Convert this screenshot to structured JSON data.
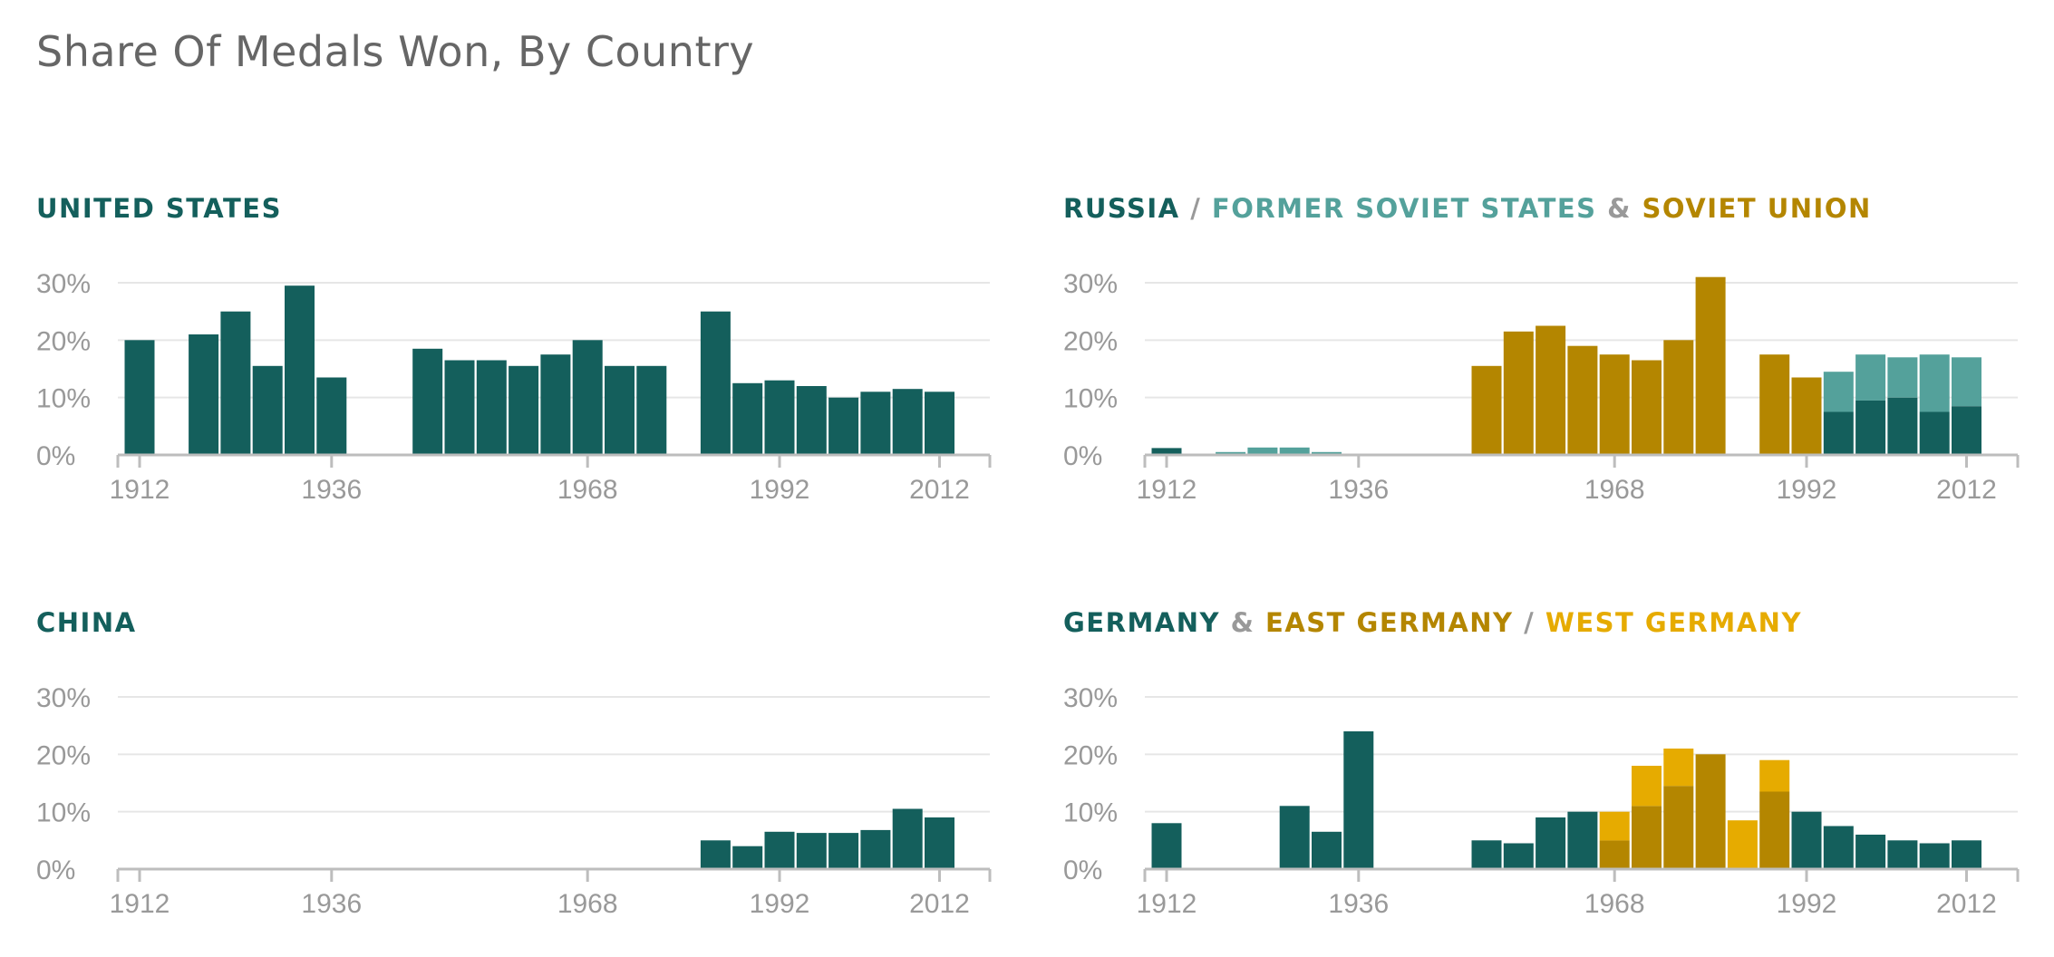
{
  "title": "Share Of Medals Won, By Country",
  "colors": {
    "dark_teal": "#145f5c",
    "light_teal": "#54a19b",
    "dark_gold": "#b48600",
    "bright_gold": "#e6ab00",
    "separator": "#999999",
    "gridline": "#e6e6e6",
    "axis": "#bdbdbd",
    "tick_text": "#999999"
  },
  "chart_data": [
    {
      "type": "bar",
      "stacked": true,
      "title_parts": [
        {
          "text": "UNITED STATES",
          "color": "#145f5c"
        }
      ],
      "x": [
        1912,
        1916,
        1920,
        1924,
        1928,
        1932,
        1936,
        1940,
        1944,
        1948,
        1952,
        1956,
        1960,
        1964,
        1968,
        1972,
        1976,
        1980,
        1984,
        1988,
        1992,
        1996,
        2000,
        2004,
        2008,
        2012
      ],
      "series": [
        {
          "color": "#145f5c",
          "values": [
            20,
            0,
            21,
            25,
            15.5,
            29.5,
            13.5,
            0,
            0,
            18.5,
            16.5,
            16.5,
            15.5,
            17.5,
            20,
            15.5,
            15.5,
            0,
            25,
            12.5,
            13,
            12,
            10,
            11,
            11.5,
            11
          ]
        }
      ],
      "ylim": [
        0,
        30
      ],
      "yticks": [
        "0%",
        "10%",
        "20%",
        "30%"
      ],
      "xticks": [
        1912,
        1936,
        1968,
        1992,
        2012
      ],
      "grid": true
    },
    {
      "type": "bar",
      "stacked": true,
      "title_parts": [
        {
          "text": "RUSSIA",
          "color": "#145f5c"
        },
        {
          "text": " / ",
          "color": "#999999"
        },
        {
          "text": "FORMER SOVIET STATES",
          "color": "#54a19b"
        },
        {
          "text": " & ",
          "color": "#999999"
        },
        {
          "text": "SOVIET UNION",
          "color": "#b48600"
        }
      ],
      "x": [
        1912,
        1916,
        1920,
        1924,
        1928,
        1932,
        1936,
        1940,
        1944,
        1948,
        1952,
        1956,
        1960,
        1964,
        1968,
        1972,
        1976,
        1980,
        1984,
        1988,
        1992,
        1996,
        2000,
        2004,
        2008,
        2012
      ],
      "series": [
        {
          "color": "#145f5c",
          "values": [
            1.2,
            0,
            0,
            0,
            0,
            0,
            0,
            0,
            0,
            0,
            0,
            0,
            0,
            0,
            0,
            0,
            0,
            0,
            0,
            0,
            0,
            7.5,
            9.5,
            10,
            7.5,
            8.5
          ]
        },
        {
          "color": "#54a19b",
          "values": [
            0,
            0,
            0.5,
            1.3,
            1.3,
            0.5,
            0,
            0,
            0,
            0,
            0,
            0,
            0,
            0,
            0,
            0,
            0,
            0,
            0,
            0,
            0,
            7,
            8,
            7,
            10,
            8.5
          ]
        },
        {
          "color": "#b48600",
          "values": [
            0,
            0,
            0,
            0,
            0,
            0,
            0,
            0,
            0,
            0,
            15.5,
            21.5,
            22.5,
            19,
            17.5,
            16.5,
            20,
            31,
            0,
            17.5,
            13.5,
            0,
            0,
            0,
            0,
            0
          ]
        }
      ],
      "ylim": [
        0,
        30
      ],
      "yticks": [
        "0%",
        "10%",
        "20%",
        "30%"
      ],
      "xticks": [
        1912,
        1936,
        1968,
        1992,
        2012
      ],
      "grid": true
    },
    {
      "type": "bar",
      "stacked": true,
      "title_parts": [
        {
          "text": "CHINA",
          "color": "#145f5c"
        }
      ],
      "x": [
        1912,
        1916,
        1920,
        1924,
        1928,
        1932,
        1936,
        1940,
        1944,
        1948,
        1952,
        1956,
        1960,
        1964,
        1968,
        1972,
        1976,
        1980,
        1984,
        1988,
        1992,
        1996,
        2000,
        2004,
        2008,
        2012
      ],
      "series": [
        {
          "color": "#145f5c",
          "values": [
            0,
            0,
            0,
            0,
            0,
            0,
            0,
            0,
            0,
            0,
            0,
            0,
            0,
            0,
            0,
            0,
            0,
            0,
            5,
            4,
            6.5,
            6.3,
            6.3,
            6.8,
            10.5,
            9
          ]
        }
      ],
      "ylim": [
        0,
        30
      ],
      "yticks": [
        "0%",
        "10%",
        "20%",
        "30%"
      ],
      "xticks": [
        1912,
        1936,
        1968,
        1992,
        2012
      ],
      "grid": true
    },
    {
      "type": "bar",
      "stacked": true,
      "title_parts": [
        {
          "text": "GERMANY",
          "color": "#145f5c"
        },
        {
          "text": " & ",
          "color": "#999999"
        },
        {
          "text": "EAST GERMANY",
          "color": "#b48600"
        },
        {
          "text": " / ",
          "color": "#999999"
        },
        {
          "text": "WEST GERMANY",
          "color": "#e6ab00"
        }
      ],
      "x": [
        1912,
        1916,
        1920,
        1924,
        1928,
        1932,
        1936,
        1940,
        1944,
        1948,
        1952,
        1956,
        1960,
        1964,
        1968,
        1972,
        1976,
        1980,
        1984,
        1988,
        1992,
        1996,
        2000,
        2004,
        2008,
        2012
      ],
      "series": [
        {
          "color": "#145f5c",
          "values": [
            8,
            0,
            0,
            0,
            11,
            6.5,
            24,
            0,
            0,
            0,
            5,
            4.5,
            9,
            10,
            0,
            0,
            0,
            0,
            0,
            0,
            10,
            7.5,
            6,
            5,
            4.5,
            5
          ]
        },
        {
          "color": "#b48600",
          "values": [
            0,
            0,
            0,
            0,
            0,
            0,
            0,
            0,
            0,
            0,
            0,
            0,
            0,
            0,
            5,
            11,
            14.5,
            20,
            0,
            13.5,
            0,
            0,
            0,
            0,
            0,
            0
          ]
        },
        {
          "color": "#e6ab00",
          "values": [
            0,
            0,
            0,
            0,
            0,
            0,
            0,
            0,
            0,
            0,
            0,
            0,
            0,
            0,
            5,
            7,
            6.5,
            0,
            8.5,
            5.5,
            0,
            0,
            0,
            0,
            0,
            0
          ]
        }
      ],
      "ylim": [
        0,
        30
      ],
      "yticks": [
        "0%",
        "10%",
        "20%",
        "30%"
      ],
      "xticks": [
        1912,
        1936,
        1968,
        1992,
        2012
      ],
      "grid": true
    }
  ]
}
